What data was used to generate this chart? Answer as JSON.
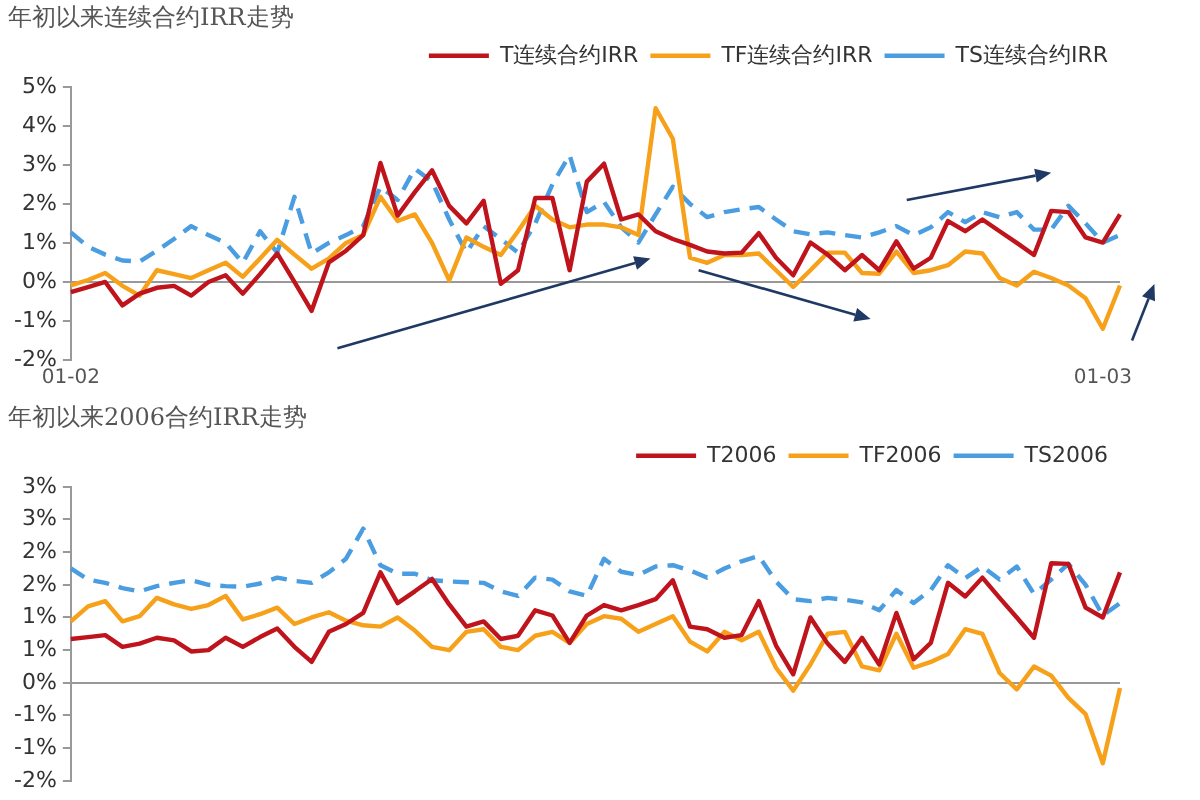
{
  "chart_data": [
    {
      "type": "line",
      "title": "年初以来连续合约IRR走势",
      "marker": "none",
      "legend": "top right",
      "categories": [
        "01-02",
        null,
        null,
        null,
        null,
        null,
        null,
        null,
        null,
        null,
        null,
        null,
        null,
        null,
        null,
        null,
        null,
        null,
        null,
        null,
        null,
        null,
        null,
        null,
        null,
        null,
        null,
        null,
        null,
        null,
        null,
        null,
        null,
        null,
        null,
        null,
        null,
        null,
        null,
        null,
        null,
        null,
        null,
        null,
        null,
        null,
        null,
        null,
        null,
        null,
        null,
        null,
        null,
        null,
        null,
        null,
        null,
        null,
        null,
        null,
        "01-03",
        null
      ],
      "ylim": [
        -2,
        5
      ],
      "yticks": [
        {
          "value": -2,
          "label": "-2%"
        },
        {
          "value": -1,
          "label": "-1%"
        },
        {
          "value": 0,
          "label": "0%"
        },
        {
          "value": 1,
          "label": "1%"
        },
        {
          "value": 2,
          "label": "2%"
        },
        {
          "value": 3,
          "label": "3%"
        },
        {
          "value": 4,
          "label": "4%"
        },
        {
          "value": 5,
          "label": "5%"
        }
      ],
      "series": [
        {
          "name": "T连续合约IRR",
          "color": "#c0141c",
          "line_style": "solid",
          "values": [
            -0.26,
            -0.13,
            0,
            -0.6,
            -0.3,
            -0.15,
            -0.1,
            -0.35,
            0,
            0.17,
            -0.3,
            0.2,
            0.73,
            0,
            -0.74,
            0.5,
            0.8,
            1.2,
            3.05,
            1.7,
            2.3,
            2.86,
            1.95,
            1.5,
            2.08,
            -0.05,
            0.3,
            2.15,
            2.15,
            0.3,
            2.57,
            3.03,
            1.6,
            1.73,
            1.3,
            1.1,
            0.95,
            0.78,
            0.73,
            0.75,
            1.25,
            0.62,
            0.17,
            1.01,
            0.7,
            0.3,
            0.69,
            0.3,
            1.04,
            0.34,
            0.62,
            1.56,
            1.3,
            1.6,
            1.3,
            1.0,
            0.69,
            1.82,
            1.79,
            1.14,
            1.01,
            1.73
          ]
        },
        {
          "name": "TF连续合约IRR",
          "color": "#f7a11a",
          "line_style": "solid",
          "values": [
            -0.09,
            0.05,
            0.23,
            -0.1,
            -0.35,
            0.3,
            0.2,
            0.1,
            0.3,
            0.49,
            0.13,
            0.6,
            1.08,
            0.7,
            0.34,
            0.6,
            1.0,
            1.2,
            2.18,
            1.56,
            1.73,
            1.0,
            0.04,
            1.14,
            0.9,
            0.69,
            1.3,
            1.95,
            1.6,
            1.4,
            1.47,
            1.47,
            1.4,
            1.2,
            4.45,
            3.67,
            0.62,
            0.49,
            0.69,
            0.69,
            0.73,
            0.3,
            -0.13,
            0.3,
            0.75,
            0.75,
            0.23,
            0.21,
            0.78,
            0.23,
            0.3,
            0.43,
            0.78,
            0.73,
            0.1,
            -0.09,
            0.26,
            0.1,
            -0.09,
            -0.42,
            -1.2,
            -0.09
          ]
        },
        {
          "name": "TS连续合约IRR",
          "color": "#4a9de0",
          "line_style": "dashed",
          "values": [
            1.27,
            0.9,
            0.7,
            0.55,
            0.52,
            0.8,
            1.1,
            1.43,
            1.2,
            1.0,
            0.49,
            1.3,
            0.75,
            2.18,
            0.73,
            1.0,
            1.2,
            1.43,
            2.44,
            2.1,
            2.9,
            2.57,
            1.6,
            0.75,
            1.43,
            1.1,
            0.75,
            1.5,
            2.5,
            3.25,
            1.79,
            2.05,
            1.4,
            1.01,
            1.73,
            2.44,
            2.0,
            1.66,
            1.79,
            1.86,
            1.92,
            1.6,
            1.3,
            1.22,
            1.27,
            1.2,
            1.14,
            1.27,
            1.43,
            1.2,
            1.4,
            1.79,
            1.53,
            1.79,
            1.66,
            1.79,
            1.34,
            1.34,
            1.95,
            1.5,
            1.01,
            1.2
          ]
        }
      ]
    },
    {
      "type": "line",
      "title": "年初以来2006合约IRR走势",
      "marker": "none",
      "legend": "top right",
      "tick_labels": "y",
      "categories": [
        null,
        null,
        null,
        null,
        null,
        null,
        null,
        null,
        null,
        null,
        null,
        null,
        null,
        null,
        null,
        null,
        null,
        null,
        null,
        null,
        null,
        null,
        null,
        null,
        null,
        null,
        null,
        null,
        null,
        null,
        null,
        null,
        null,
        null,
        null,
        null,
        null,
        null,
        null,
        null,
        null,
        null,
        null,
        null,
        null,
        null,
        null,
        null,
        null,
        null,
        null,
        null,
        null,
        null,
        null,
        null,
        null,
        null,
        null,
        null,
        null,
        null
      ],
      "ylim": [
        -1.5,
        3
      ],
      "yticks": [
        {
          "value": -1.5,
          "label": "-2%"
        },
        {
          "value": -1,
          "label": "-1%"
        },
        {
          "value": -0.5,
          "label": "-1%"
        },
        {
          "value": 0,
          "label": "0%"
        },
        {
          "value": 0.5,
          "label": "1%"
        },
        {
          "value": 1,
          "label": "1%"
        },
        {
          "value": 1.5,
          "label": "2%"
        },
        {
          "value": 2,
          "label": "2%"
        },
        {
          "value": 2.5,
          "label": "3%"
        },
        {
          "value": 3,
          "label": "3%"
        }
      ],
      "series": [
        {
          "name": "T2006",
          "color": "#c0141c",
          "line_style": "solid",
          "values": [
            0.67,
            0.7,
            0.73,
            0.55,
            0.6,
            0.69,
            0.65,
            0.48,
            0.5,
            0.69,
            0.55,
            0.7,
            0.83,
            0.55,
            0.32,
            0.78,
            0.9,
            1.07,
            1.69,
            1.22,
            1.4,
            1.59,
            1.2,
            0.86,
            0.94,
            0.67,
            0.72,
            1.11,
            1.03,
            0.61,
            1.03,
            1.19,
            1.11,
            1.19,
            1.28,
            1.57,
            0.86,
            0.82,
            0.69,
            0.73,
            1.25,
            0.57,
            0.13,
            1.0,
            0.6,
            0.32,
            0.69,
            0.28,
            1.07,
            0.36,
            0.61,
            1.53,
            1.32,
            1.61,
            1.3,
            1.0,
            0.69,
            1.83,
            1.82,
            1.15,
            1.0,
            1.69
          ]
        },
        {
          "name": "TF2006",
          "color": "#f7a11a",
          "line_style": "solid",
          "values": [
            0.94,
            1.17,
            1.25,
            0.94,
            1.02,
            1.3,
            1.2,
            1.13,
            1.19,
            1.33,
            0.97,
            1.05,
            1.15,
            0.9,
            1.0,
            1.08,
            0.95,
            0.88,
            0.86,
            1.0,
            0.8,
            0.55,
            0.5,
            0.78,
            0.82,
            0.55,
            0.5,
            0.72,
            0.78,
            0.61,
            0.9,
            1.02,
            0.98,
            0.78,
            0.9,
            1.02,
            0.63,
            0.48,
            0.78,
            0.65,
            0.78,
            0.23,
            -0.12,
            0.28,
            0.75,
            0.78,
            0.25,
            0.19,
            0.75,
            0.23,
            0.32,
            0.44,
            0.82,
            0.75,
            0.15,
            -0.1,
            0.25,
            0.11,
            -0.23,
            -0.48,
            -1.23,
            -0.08
          ]
        },
        {
          "name": "TS2006",
          "color": "#4a9de0",
          "line_style": "dashed",
          "values": [
            1.75,
            1.58,
            1.53,
            1.45,
            1.4,
            1.48,
            1.53,
            1.57,
            1.5,
            1.48,
            1.47,
            1.52,
            1.61,
            1.56,
            1.53,
            1.69,
            1.9,
            2.36,
            1.8,
            1.67,
            1.67,
            1.57,
            1.55,
            1.54,
            1.53,
            1.4,
            1.33,
            1.61,
            1.58,
            1.4,
            1.33,
            1.9,
            1.7,
            1.65,
            1.78,
            1.8,
            1.72,
            1.61,
            1.75,
            1.86,
            1.94,
            1.55,
            1.28,
            1.25,
            1.3,
            1.27,
            1.23,
            1.11,
            1.42,
            1.22,
            1.42,
            1.8,
            1.6,
            1.78,
            1.58,
            1.78,
            1.36,
            1.58,
            1.82,
            1.5,
            1.03,
            1.22
          ]
        }
      ]
    }
  ]
}
